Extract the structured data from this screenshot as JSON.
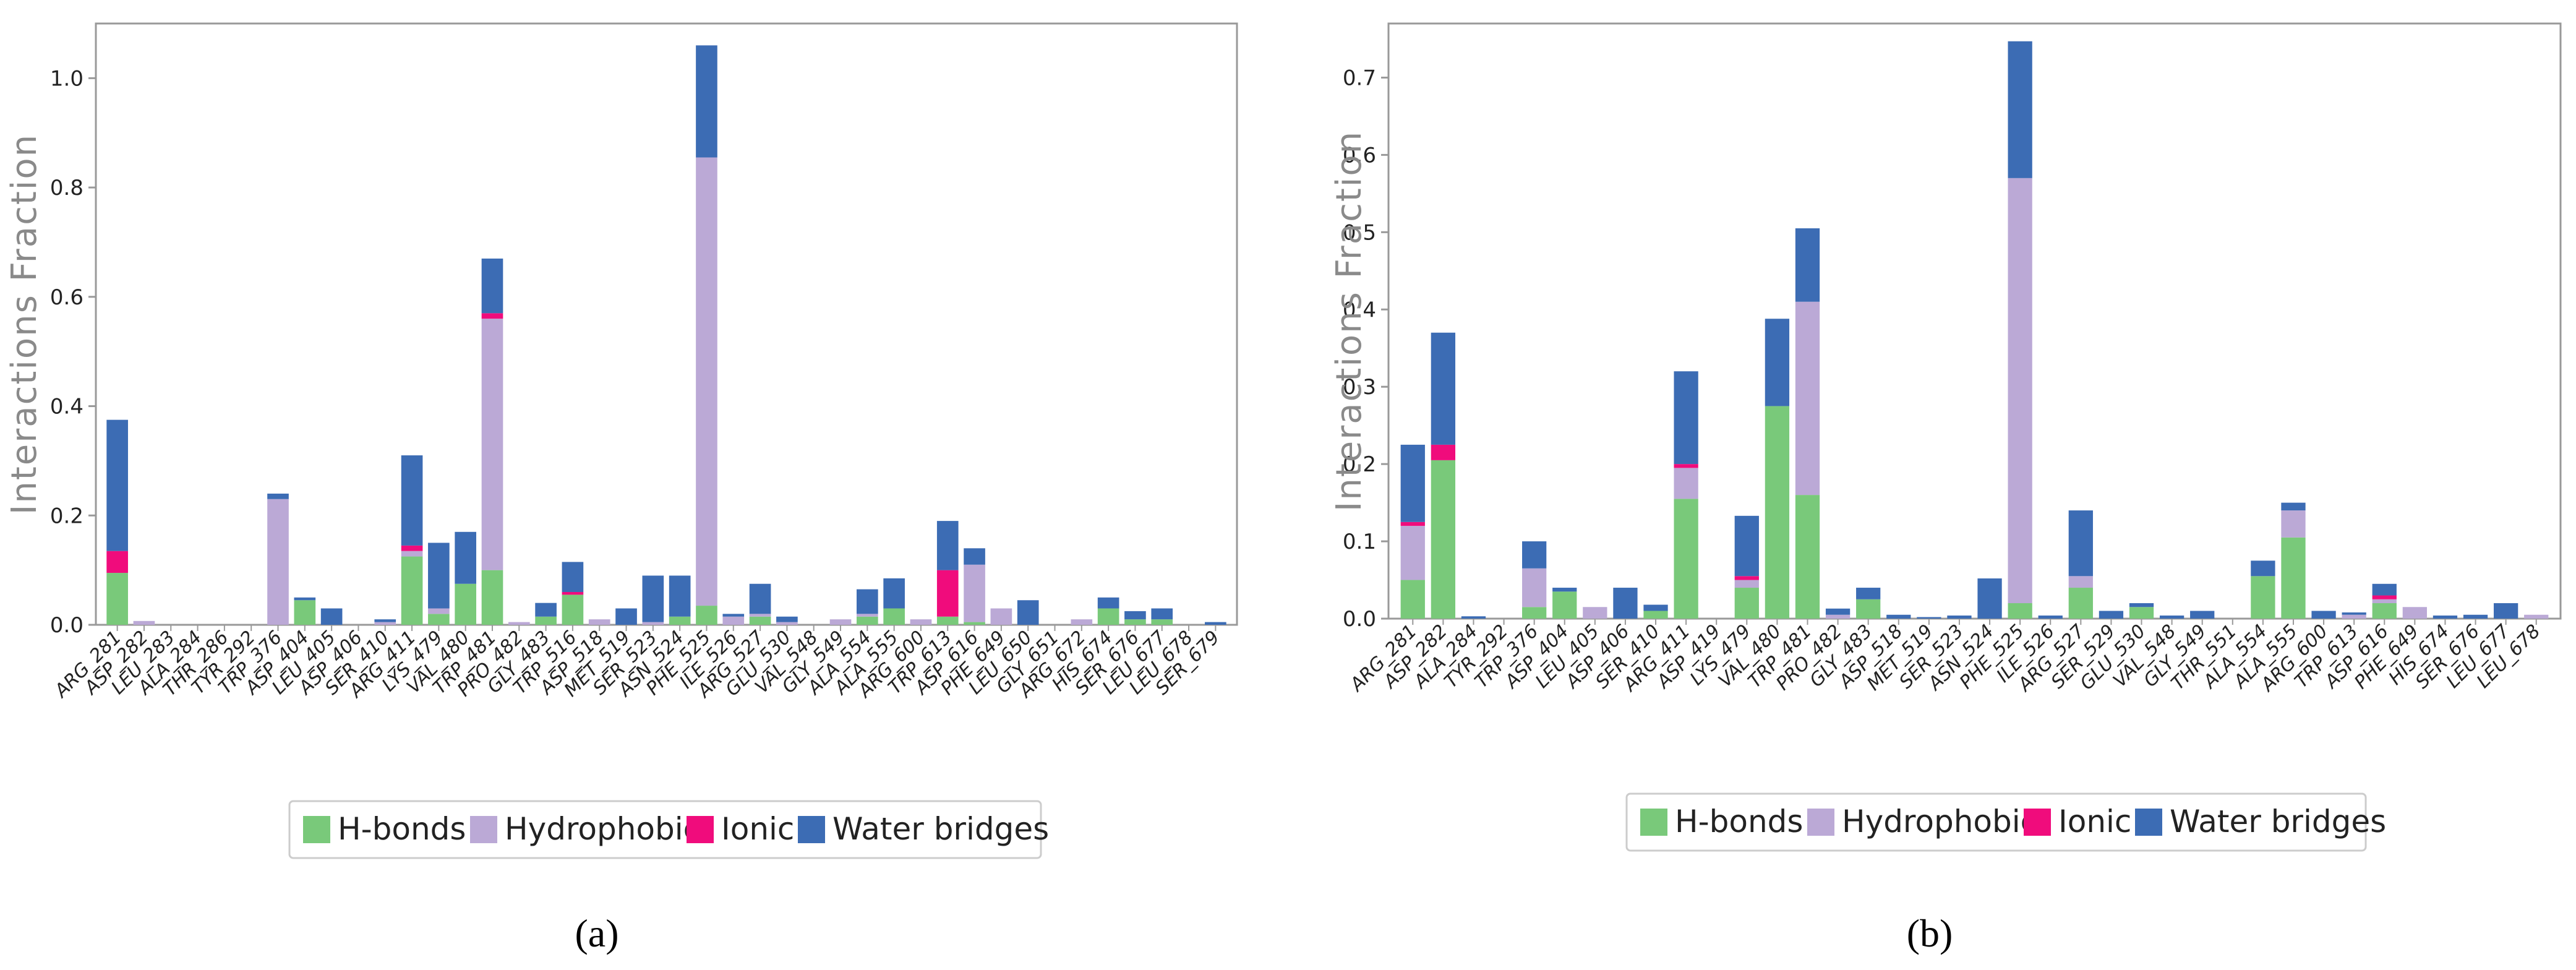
{
  "colors": {
    "hbonds": "#79c97a",
    "hydrophobic": "#bba9d6",
    "ionic": "#f00c7c",
    "water": "#3c6cb4",
    "axis": "#999999",
    "text": "#222222"
  },
  "chart_data": [
    {
      "type": "bar",
      "stacked": true,
      "panel_label": "(a)",
      "ylabel": "Interactions Fraction",
      "xlabel": "",
      "ylim": [
        0,
        1.1
      ],
      "yticks": [
        "0.0",
        "0.2",
        "0.4",
        "0.6",
        "0.8",
        "1.0"
      ],
      "legend": {
        "placement": "bottom-center",
        "entries": [
          "H-bonds",
          "Hydrophobic",
          "Ionic",
          "Water bridges"
        ]
      },
      "categories": [
        "ARG_281",
        "ASP_282",
        "LEU_283",
        "ALA_284",
        "THR_286",
        "TYR_292",
        "TRP_376",
        "ASP_404",
        "LEU_405",
        "ASP_406",
        "SER_410",
        "ARG_411",
        "LYS_479",
        "VAL_480",
        "TRP_481",
        "PRO_482",
        "GLY_483",
        "TRP_516",
        "ASP_518",
        "MET_519",
        "SER_523",
        "ASN_524",
        "PHE_525",
        "ILE_526",
        "ARG_527",
        "GLU_530",
        "VAL_548",
        "GLY_549",
        "ALA_554",
        "ALA_555",
        "ARG_600",
        "TRP_613",
        "ASP_616",
        "PHE_649",
        "LEU_650",
        "GLY_651",
        "ARG_672",
        "HIS_674",
        "SER_676",
        "LEU_677",
        "LEU_678",
        "SER_679"
      ],
      "series": [
        {
          "name": "H-bonds",
          "values": [
            0.095,
            0,
            0,
            0,
            0,
            0,
            0,
            0.045,
            0,
            0,
            0,
            0.125,
            0.02,
            0.075,
            0.1,
            0,
            0.015,
            0.055,
            0,
            0,
            0,
            0.015,
            0.035,
            0,
            0.015,
            0,
            0,
            0,
            0.015,
            0.03,
            0,
            0.015,
            0.005,
            0,
            0,
            0,
            0,
            0.03,
            0.01,
            0.01,
            0,
            0
          ]
        },
        {
          "name": "Hydrophobic",
          "values": [
            0,
            0.007,
            0,
            0,
            0,
            0,
            0.23,
            0,
            0,
            0,
            0.005,
            0.01,
            0.01,
            0,
            0.46,
            0.005,
            0,
            0,
            0.01,
            0,
            0.005,
            0,
            0.82,
            0.015,
            0.005,
            0.005,
            0,
            0.01,
            0.005,
            0,
            0.01,
            0,
            0.105,
            0.03,
            0,
            0,
            0.01,
            0,
            0,
            0,
            0,
            0
          ]
        },
        {
          "name": "Ionic",
          "values": [
            0.04,
            0,
            0,
            0,
            0,
            0,
            0,
            0,
            0,
            0,
            0,
            0.01,
            0,
            0,
            0.01,
            0,
            0,
            0.005,
            0,
            0,
            0,
            0,
            0,
            0,
            0,
            0,
            0,
            0,
            0,
            0,
            0,
            0.085,
            0,
            0,
            0,
            0,
            0,
            0,
            0,
            0,
            0,
            0
          ]
        },
        {
          "name": "Water bridges",
          "values": [
            0.24,
            0,
            0,
            0,
            0,
            0,
            0.01,
            0.005,
            0.03,
            0,
            0.005,
            0.165,
            0.12,
            0.095,
            0.1,
            0,
            0.025,
            0.055,
            0,
            0.03,
            0.085,
            0.075,
            0.205,
            0.005,
            0.055,
            0.01,
            0,
            0,
            0.045,
            0.055,
            0,
            0.09,
            0.03,
            0,
            0.045,
            0,
            0,
            0.02,
            0.015,
            0.02,
            0,
            0.005
          ]
        }
      ]
    },
    {
      "type": "bar",
      "stacked": true,
      "panel_label": "(b)",
      "ylabel": "Interactions Fraction",
      "xlabel": "",
      "ylim": [
        0,
        0.77
      ],
      "yticks": [
        "0.0",
        "0.1",
        "0.2",
        "0.3",
        "0.4",
        "0.5",
        "0.6",
        "0.7"
      ],
      "legend": {
        "placement": "bottom-center",
        "entries": [
          "H-bonds",
          "Hydrophobic",
          "Ionic",
          "Water bridges"
        ]
      },
      "categories": [
        "ARG_281",
        "ASP_282",
        "ALA_284",
        "TYR_292",
        "TRP_376",
        "ASP_404",
        "LEU_405",
        "ASP_406",
        "SER_410",
        "ARG_411",
        "ASP_419",
        "LYS_479",
        "VAL_480",
        "TRP_481",
        "PRO_482",
        "GLY_483",
        "ASP_518",
        "MET_519",
        "SER_523",
        "ASN_524",
        "PHE_525",
        "ILE_526",
        "ARG_527",
        "SER_529",
        "GLU_530",
        "VAL_548",
        "GLY_549",
        "THR_551",
        "ALA_554",
        "ALA_555",
        "ARG_600",
        "TRP_613",
        "ASP_616",
        "PHE_649",
        "HIS_674",
        "SER_676",
        "LEU_677",
        "LEU_678"
      ],
      "series": [
        {
          "name": "H-bonds",
          "values": [
            0.05,
            0.205,
            0,
            0,
            0.015,
            0.035,
            0,
            0,
            0.01,
            0.155,
            0,
            0.04,
            0.275,
            0.16,
            0,
            0.025,
            0,
            0,
            0,
            0,
            0.02,
            0,
            0.04,
            0,
            0.015,
            0,
            0,
            0,
            0.055,
            0.105,
            0,
            0,
            0.02,
            0,
            0,
            0,
            0,
            0
          ]
        },
        {
          "name": "Hydrophobic",
          "values": [
            0.07,
            0,
            0,
            0,
            0.05,
            0,
            0.015,
            0,
            0,
            0.04,
            0,
            0.01,
            0,
            0.25,
            0.005,
            0,
            0,
            0,
            0,
            0,
            0.55,
            0,
            0.015,
            0,
            0,
            0,
            0,
            0,
            0,
            0.035,
            0,
            0.005,
            0.005,
            0.015,
            0,
            0,
            0,
            0.005
          ]
        },
        {
          "name": "Ionic",
          "values": [
            0.005,
            0.02,
            0,
            0,
            0,
            0,
            0,
            0,
            0,
            0.005,
            0,
            0.005,
            0,
            0,
            0,
            0,
            0,
            0,
            0,
            0,
            0,
            0,
            0,
            0,
            0,
            0,
            0,
            0,
            0,
            0,
            0,
            0,
            0.005,
            0,
            0,
            0,
            0,
            0
          ]
        },
        {
          "name": "Water bridges",
          "values": [
            0.1,
            0.145,
            0.003,
            0,
            0.035,
            0.005,
            0,
            0.04,
            0.008,
            0.12,
            0,
            0.078,
            0.113,
            0.095,
            0.008,
            0.015,
            0.005,
            0.002,
            0.004,
            0.052,
            0.177,
            0.004,
            0.085,
            0.01,
            0.005,
            0.004,
            0.01,
            0,
            0.02,
            0.01,
            0.01,
            0.003,
            0.015,
            0,
            0.004,
            0.005,
            0.02,
            0
          ]
        }
      ]
    }
  ]
}
